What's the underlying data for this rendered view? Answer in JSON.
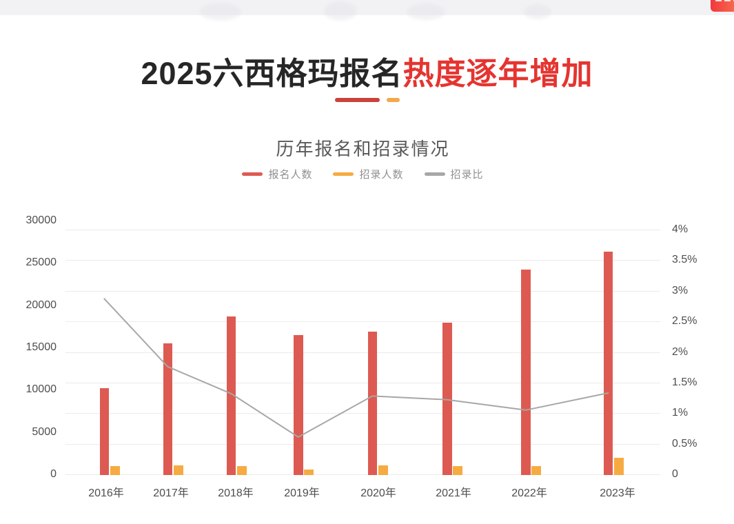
{
  "hero": {
    "title_black": "2025六西格玛报名",
    "title_red": "热度逐年增加"
  },
  "colors": {
    "hero_red": "#e53430",
    "underline_red": "#c9423b",
    "underline_orange": "#f4a84a",
    "bar_red": "#dd5a52",
    "bar_orange": "#f6ab42",
    "line_gray": "#a7a7a7",
    "grid_gray": "#ebebeb",
    "badge_gradient_start": "#f2383f",
    "badge_gradient_end": "#fa7450"
  },
  "chart_data": {
    "type": "combo-bar-line",
    "title": "历年报名和招录情况",
    "categories": [
      "2016年",
      "2017年",
      "2018年",
      "2019年",
      "2020年",
      "2021年",
      "2022年",
      "2023年"
    ],
    "series": [
      {
        "name": "报名人数",
        "type": "bar",
        "axis": "left",
        "color": "#dd5a52",
        "values": [
          10200,
          15500,
          18700,
          16500,
          16900,
          17900,
          24200,
          26300
        ]
      },
      {
        "name": "招录人数",
        "type": "bar",
        "axis": "left",
        "color": "#f6ab42",
        "values": [
          1000,
          1050,
          1000,
          600,
          1050,
          950,
          950,
          1950
        ]
      },
      {
        "name": "招录比",
        "type": "line",
        "axis": "right",
        "unit": "%",
        "color": "#a7a7a7",
        "values": [
          2.87,
          1.76,
          1.32,
          0.61,
          1.28,
          1.22,
          1.05,
          1.33
        ]
      }
    ],
    "left_axis": {
      "min": 0,
      "max": 30000,
      "tick_labels": [
        "30000",
        "25000",
        "20000",
        "15000",
        "10000",
        "5000",
        "0"
      ]
    },
    "right_axis": {
      "min": 0,
      "max": 4,
      "unit": "%",
      "tick_labels": [
        "4%",
        "3.5%",
        "3%",
        "2.5%",
        "2%",
        "1.5%",
        "1%",
        "0.5%",
        "0"
      ]
    },
    "legend_position": "top",
    "grid": true
  }
}
